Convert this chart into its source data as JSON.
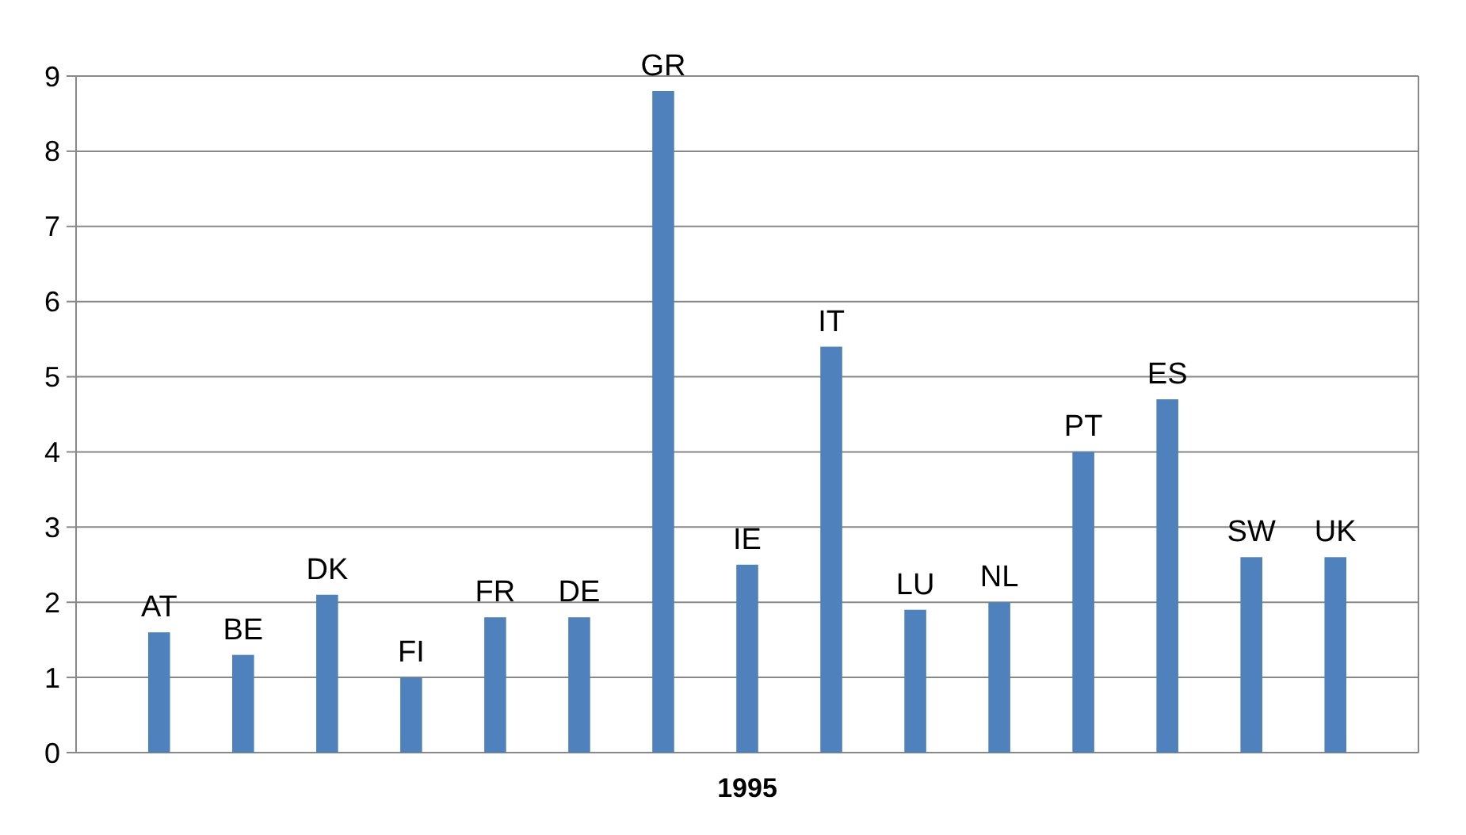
{
  "chart_data": {
    "type": "bar",
    "categories": [
      "1995"
    ],
    "ylim": [
      0,
      9
    ],
    "yticks": [
      0,
      1,
      2,
      3,
      4,
      5,
      6,
      7,
      8,
      9
    ],
    "grid": "y",
    "series": [
      {
        "name": "AT",
        "color": "#4f81bd",
        "values": [
          1.6
        ]
      },
      {
        "name": "BE",
        "color": "#4f81bd",
        "values": [
          1.3
        ]
      },
      {
        "name": "DK",
        "color": "#4f81bd",
        "values": [
          2.1
        ]
      },
      {
        "name": "FI",
        "color": "#4f81bd",
        "values": [
          1.0
        ]
      },
      {
        "name": "FR",
        "color": "#4f81bd",
        "values": [
          1.8
        ]
      },
      {
        "name": "DE",
        "color": "#4f81bd",
        "values": [
          1.8
        ]
      },
      {
        "name": "GR",
        "color": "#4f81bd",
        "values": [
          8.8
        ]
      },
      {
        "name": "IE",
        "color": "#4f81bd",
        "values": [
          2.5
        ]
      },
      {
        "name": "IT",
        "color": "#4f81bd",
        "values": [
          5.4
        ]
      },
      {
        "name": "LU",
        "color": "#4f81bd",
        "values": [
          1.9
        ]
      },
      {
        "name": "NL",
        "color": "#4f81bd",
        "values": [
          2.0
        ]
      },
      {
        "name": "PT",
        "color": "#4f81bd",
        "values": [
          4.0
        ]
      },
      {
        "name": "ES",
        "color": "#4f81bd",
        "values": [
          4.7
        ]
      },
      {
        "name": "SW",
        "color": "#4f81bd",
        "values": [
          2.6
        ]
      },
      {
        "name": "UK",
        "color": "#4f81bd",
        "values": [
          2.6
        ]
      }
    ]
  }
}
